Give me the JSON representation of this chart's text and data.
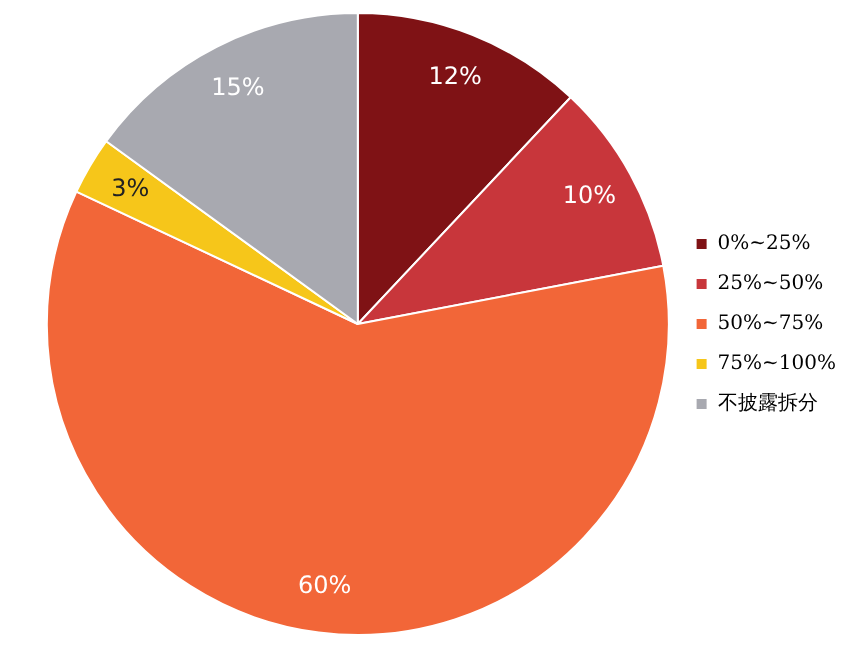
{
  "chart_data": {
    "type": "pie",
    "categories": [
      "0%~25%",
      "25%~50%",
      "50%~75%",
      "75%~100%",
      "不披露拆分"
    ],
    "values": [
      12,
      10,
      60,
      3,
      15
    ],
    "colors": [
      "#7f1215",
      "#c8363b",
      "#f26638",
      "#f6c61a",
      "#a8a9b0"
    ],
    "value_labels": [
      "12%",
      "10%",
      "60%",
      "3%",
      "15%"
    ],
    "legend": "right"
  }
}
